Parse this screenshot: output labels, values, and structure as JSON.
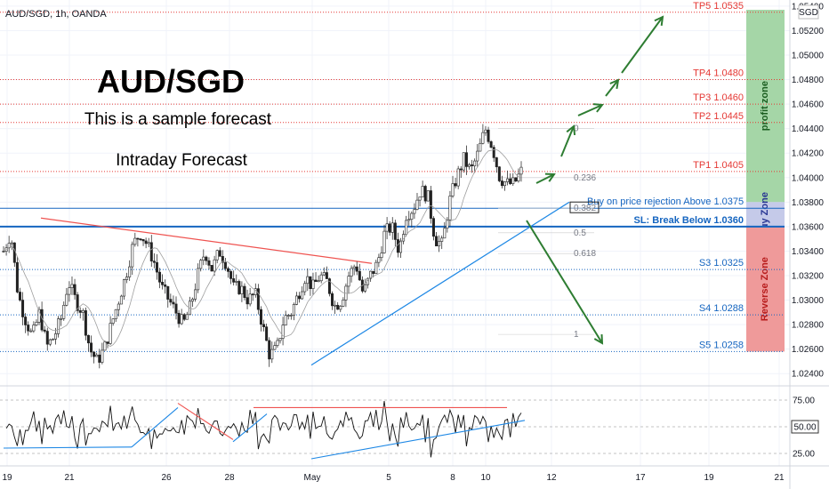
{
  "header": {
    "symbol_label": "AUD/SGD, 1h, OANDA"
  },
  "overlay": {
    "title": "AUD/SGD",
    "subtitle": "This is a sample forecast",
    "caption": "Intraday Forecast"
  },
  "currency_box": "SGD",
  "chart_data": {
    "type": "candlestick",
    "symbol": "AUD/SGD",
    "timeframe": "1h",
    "source": "OANDA",
    "ylim": [
      1.023,
      1.0545
    ],
    "y_ticks": [
      "1.05400",
      "1.05200",
      "1.05000",
      "1.04800",
      "1.04600",
      "1.04400",
      "1.04200",
      "1.04000",
      "1.03800",
      "1.03600",
      "1.03400",
      "1.03200",
      "1.03000",
      "1.02800",
      "1.02600",
      "1.02400"
    ],
    "x_ticks": [
      "19",
      "21",
      "26",
      "28",
      "May",
      "5",
      "8",
      "10",
      "12",
      "17",
      "19",
      "21"
    ],
    "price_path": [
      1.034,
      1.0355,
      1.0305,
      1.0285,
      1.027,
      1.029,
      1.0262,
      1.027,
      1.0285,
      1.0315,
      1.03,
      1.029,
      1.026,
      1.025,
      1.026,
      1.028,
      1.03,
      1.032,
      1.0345,
      1.0355,
      1.0345,
      1.033,
      1.031,
      1.03,
      1.029,
      1.028,
      1.0295,
      1.032,
      1.034,
      1.0325,
      1.034,
      1.033,
      1.031,
      1.031,
      1.03,
      1.0305,
      1.028,
      1.0255,
      1.026,
      1.0285,
      1.029,
      1.0305,
      1.032,
      1.031,
      1.032,
      1.0315,
      1.0295,
      1.03,
      1.032,
      1.033,
      1.0305,
      1.032,
      1.033,
      1.0355,
      1.036,
      1.034,
      1.037,
      1.0375,
      1.039,
      1.0385,
      1.035,
      1.0345,
      1.038,
      1.04,
      1.0415,
      1.0405,
      1.042,
      1.044,
      1.0425,
      1.04,
      1.0395,
      1.0395,
      1.0405
    ],
    "levels": [
      {
        "label": "TP5 1.0535",
        "value": 1.0535,
        "color": "#e53935"
      },
      {
        "label": "TP4 1.0480",
        "value": 1.048,
        "color": "#e53935"
      },
      {
        "label": "TP3 1.0460",
        "value": 1.046,
        "color": "#e53935"
      },
      {
        "label": "TP2 1.0445",
        "value": 1.0445,
        "color": "#e53935"
      },
      {
        "label": "TP1 1.0405",
        "value": 1.0405,
        "color": "#e53935"
      },
      {
        "label": "Buy on price rejection Above 1.0375",
        "value": 1.0375,
        "color": "#1565c0"
      },
      {
        "label": "SL: Break Below 1.0360",
        "value": 1.036,
        "color": "#1565c0"
      },
      {
        "label": "S3 1.0325",
        "value": 1.0325,
        "color": "#1565c0"
      },
      {
        "label": "S4 1.0288",
        "value": 1.0288,
        "color": "#1565c0"
      },
      {
        "label": "S5 1.0258",
        "value": 1.0258,
        "color": "#1565c0"
      }
    ],
    "fib_labels": [
      "0",
      "0.236",
      "0.382",
      "0.5",
      "0.618",
      "1"
    ],
    "fib_values": [
      1.044,
      1.04,
      1.0375,
      1.0355,
      1.0338,
      1.0272
    ],
    "zones": [
      {
        "label": "profit zone",
        "from": 1.038,
        "to": 1.0545,
        "color": "#a5d6a7",
        "text_color": "#1b5e20"
      },
      {
        "label": "Buy Zone",
        "from": 1.036,
        "to": 1.038,
        "color": "#c5cae9",
        "text_color": "#283593"
      },
      {
        "label": "Reverse Zone",
        "from": 1.0258,
        "to": 1.036,
        "color": "#ef9a9a",
        "text_color": "#b71c1c"
      }
    ],
    "rsi": {
      "y_ticks": [
        "75.00",
        "50.00",
        "25.00"
      ],
      "ylim": [
        15,
        85
      ],
      "last_value": "50.00"
    },
    "colors": {
      "bull": "#555555",
      "bear": "#222222",
      "up_arrow": "#2e7d32",
      "down_arrow": "#2e7d32",
      "trend_red": "#ef5350",
      "trend_blue": "#1e88e5"
    }
  }
}
